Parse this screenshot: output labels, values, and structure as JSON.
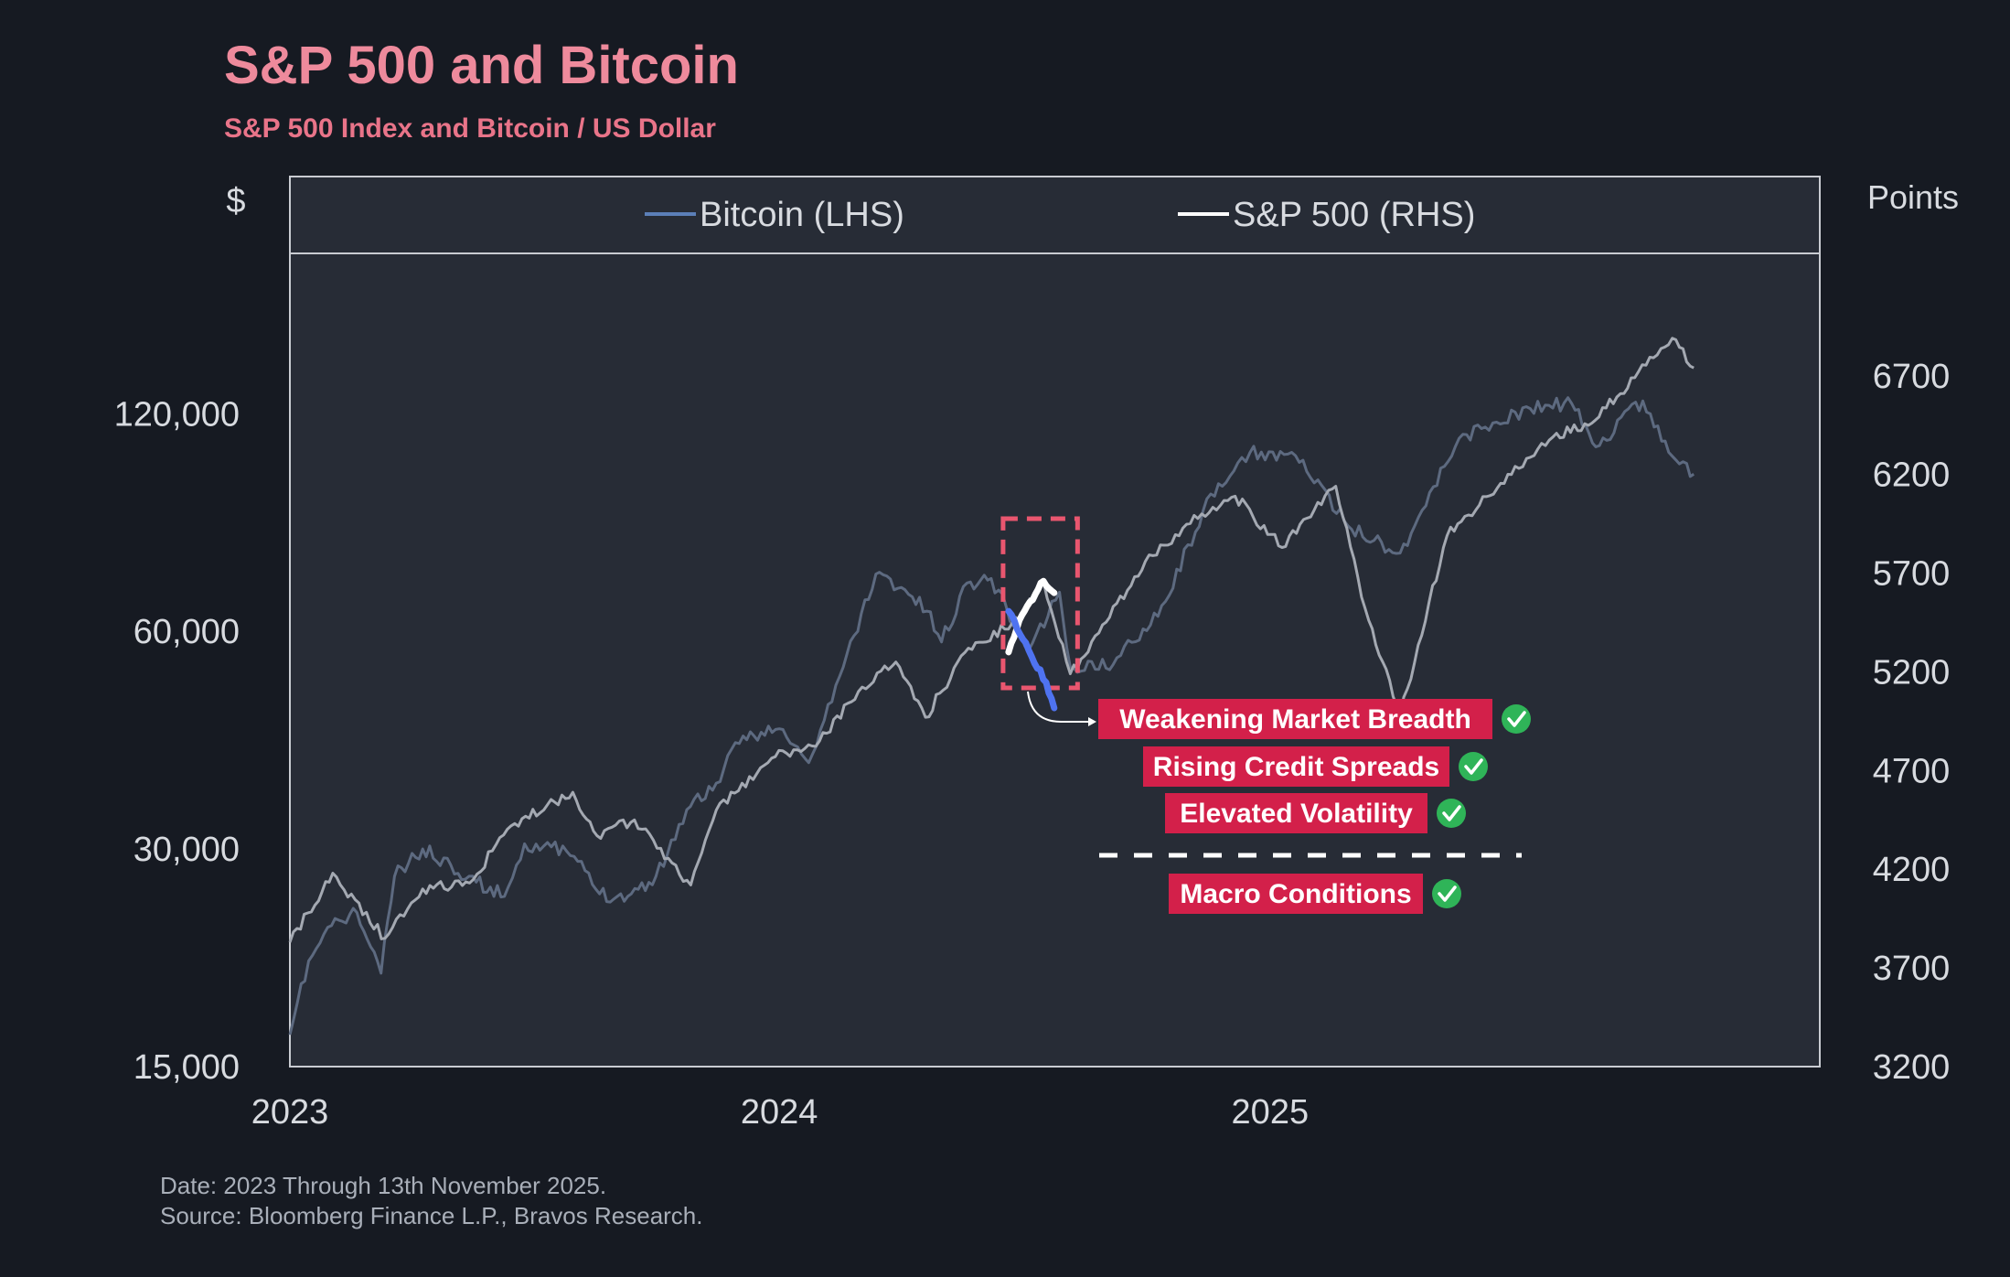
{
  "chart_data": {
    "type": "line",
    "title": "S&P 500 and Bitcoin",
    "subtitle": "S&P 500 Index and Bitcoin / US Dollar",
    "left_axis": {
      "label": "$",
      "scale": "log",
      "ticks": [
        "120,000",
        "60,000",
        "30,000",
        "15,000"
      ],
      "tick_values": [
        120000,
        60000,
        30000,
        15000
      ],
      "range": [
        15000,
        200000
      ]
    },
    "right_axis": {
      "label": "Points",
      "ticks": [
        "6700",
        "6200",
        "5700",
        "5200",
        "4700",
        "4200",
        "3700",
        "3200"
      ],
      "tick_values": [
        6700,
        6200,
        5700,
        5200,
        4700,
        4200,
        3700,
        3200
      ],
      "range": [
        3200,
        7320
      ]
    },
    "x_axis": {
      "ticks": [
        "2023",
        "2024",
        "2025"
      ],
      "range": [
        "2023-01-01",
        "2026-02-15"
      ]
    },
    "legend": {
      "position": "top",
      "entries": [
        {
          "name": "Bitcoin (LHS)",
          "color": "#5b7fb8"
        },
        {
          "name": "S&P 500 (RHS)",
          "color": "#ffffff"
        }
      ]
    },
    "series": [
      {
        "name": "Bitcoin (LHS)",
        "axis": "left",
        "color": "#5d6a80",
        "points": [
          [
            "2023-01-01",
            16600
          ],
          [
            "2023-01-15",
            21000
          ],
          [
            "2023-02-01",
            23500
          ],
          [
            "2023-02-20",
            24500
          ],
          [
            "2023-03-10",
            20200
          ],
          [
            "2023-03-20",
            27500
          ],
          [
            "2023-04-10",
            30000
          ],
          [
            "2023-05-01",
            28500
          ],
          [
            "2023-05-20",
            27000
          ],
          [
            "2023-06-10",
            25800
          ],
          [
            "2023-06-25",
            30500
          ],
          [
            "2023-07-15",
            30200
          ],
          [
            "2023-08-01",
            29300
          ],
          [
            "2023-08-20",
            26000
          ],
          [
            "2023-09-10",
            25800
          ],
          [
            "2023-10-01",
            27500
          ],
          [
            "2023-10-24",
            34000
          ],
          [
            "2023-11-15",
            37000
          ],
          [
            "2023-12-05",
            43000
          ],
          [
            "2024-01-01",
            44000
          ],
          [
            "2024-01-23",
            39500
          ],
          [
            "2024-02-15",
            52000
          ],
          [
            "2024-03-13",
            72000
          ],
          [
            "2024-04-01",
            69000
          ],
          [
            "2024-04-20",
            64000
          ],
          [
            "2024-05-01",
            58000
          ],
          [
            "2024-05-20",
            70000
          ],
          [
            "2024-06-07",
            71000
          ],
          [
            "2024-07-05",
            56500
          ],
          [
            "2024-07-28",
            68000
          ],
          [
            "2024-08-05",
            53500
          ],
          [
            "2024-09-06",
            54000
          ],
          [
            "2024-10-15",
            66000
          ],
          [
            "2024-11-12",
            88000
          ],
          [
            "2024-12-05",
            100000
          ],
          [
            "2024-12-17",
            106000
          ],
          [
            "2025-01-20",
            105000
          ],
          [
            "2025-02-28",
            84000
          ],
          [
            "2025-04-08",
            77000
          ],
          [
            "2025-05-22",
            111000
          ],
          [
            "2025-07-14",
            122000
          ],
          [
            "2025-08-14",
            124000
          ],
          [
            "2025-09-01",
            108000
          ],
          [
            "2025-10-06",
            125000
          ],
          [
            "2025-10-20",
            110000
          ],
          [
            "2025-11-13",
            99000
          ]
        ]
      },
      {
        "name": "S&P 500 (RHS)",
        "axis": "right",
        "color": "#a4a9b2",
        "points": [
          [
            "2023-01-01",
            3830
          ],
          [
            "2023-02-02",
            4180
          ],
          [
            "2023-03-13",
            3850
          ],
          [
            "2023-04-10",
            4100
          ],
          [
            "2023-05-15",
            4130
          ],
          [
            "2023-06-15",
            4420
          ],
          [
            "2023-07-31",
            4590
          ],
          [
            "2023-08-18",
            4370
          ],
          [
            "2023-09-15",
            4450
          ],
          [
            "2023-10-27",
            4120
          ],
          [
            "2023-11-15",
            4500
          ],
          [
            "2023-12-29",
            4770
          ],
          [
            "2024-01-31",
            4850
          ],
          [
            "2024-02-29",
            5100
          ],
          [
            "2024-03-28",
            5250
          ],
          [
            "2024-04-19",
            4970
          ],
          [
            "2024-05-21",
            5320
          ],
          [
            "2024-06-28",
            5460
          ],
          [
            "2024-07-16",
            5660
          ],
          [
            "2024-08-05",
            5190
          ],
          [
            "2024-09-30",
            5760
          ],
          [
            "2024-11-11",
            6000
          ],
          [
            "2024-12-06",
            6090
          ],
          [
            "2025-01-10",
            5830
          ],
          [
            "2025-02-19",
            6140
          ],
          [
            "2025-03-13",
            5520
          ],
          [
            "2025-04-08",
            4980
          ],
          [
            "2025-05-13",
            5890
          ],
          [
            "2025-06-30",
            6200
          ],
          [
            "2025-07-31",
            6390
          ],
          [
            "2025-08-29",
            6460
          ],
          [
            "2025-09-30",
            6690
          ],
          [
            "2025-10-28",
            6890
          ],
          [
            "2025-11-13",
            6740
          ]
        ]
      }
    ],
    "highlight": {
      "start": "2024-06-20",
      "end": "2024-08-05",
      "series": [
        {
          "name": "S&P 500 (RHS)",
          "color": "#ffffff",
          "points": [
            [
              "2024-06-20",
              5300
            ],
            [
              "2024-06-28",
              5460
            ],
            [
              "2024-07-16",
              5660
            ],
            [
              "2024-07-24",
              5600
            ]
          ]
        },
        {
          "name": "Bitcoin (LHS)",
          "color": "#4f73f0",
          "points": [
            [
              "2024-06-20",
              64000
            ],
            [
              "2024-07-05",
              56500
            ],
            [
              "2024-07-18",
              51000
            ],
            [
              "2024-07-24",
              47000
            ]
          ]
        }
      ]
    },
    "annotations": [
      {
        "text": "Weakening Market Breadth",
        "checked": true
      },
      {
        "text": "Rising Credit Spreads",
        "checked": true
      },
      {
        "text": "Elevated Volatility",
        "checked": true
      },
      {
        "text": "Macro Conditions",
        "checked": true
      }
    ],
    "grid": false
  },
  "footer": {
    "date": "Date: 2023 Through 13th November 2025.",
    "source": "Source: Bloomberg Finance L.P., Bravos Research."
  },
  "colors": {
    "background": "#161a22",
    "plot_background": "#272c36",
    "title": "#ee8a9c",
    "annotation": "#d3204a",
    "check": "#2fb458",
    "highlight_box": "#e9566f"
  }
}
